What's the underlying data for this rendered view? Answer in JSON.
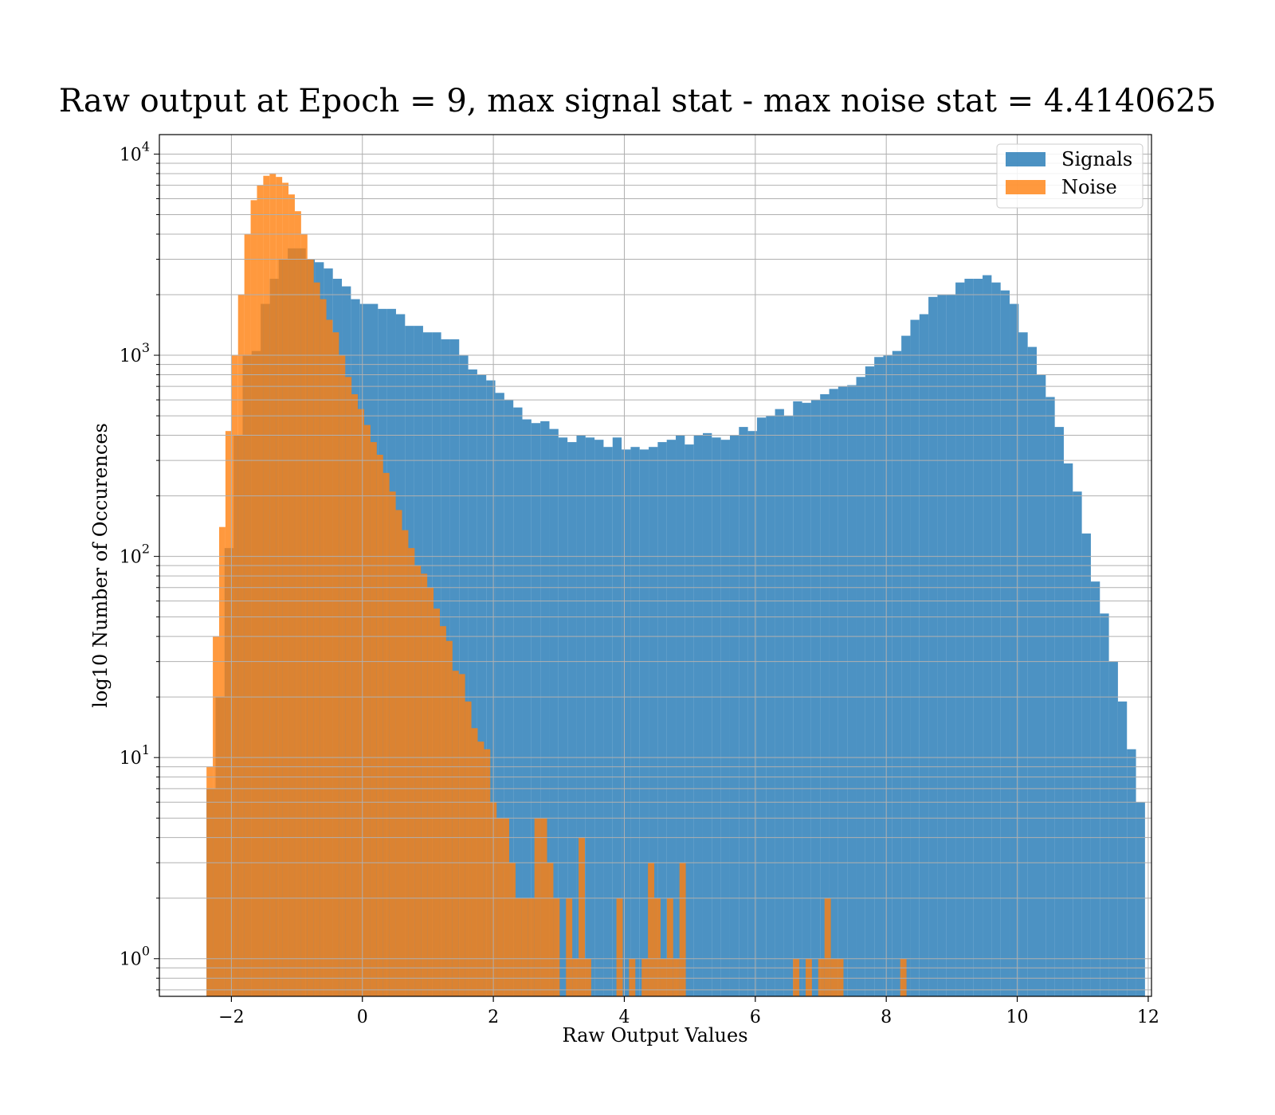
{
  "chart_data": {
    "type": "histogram",
    "title": "Raw output at Epoch = 9, max signal stat - max noise stat = 4.4140625",
    "xlabel": "Raw Output Values",
    "ylabel": "log10 Number of Occurences",
    "xlim": [
      -3.1,
      12.05
    ],
    "ylim": [
      0.65,
      12500
    ],
    "yscale": "log",
    "grid": true,
    "legend_position": "top-right",
    "x_ticks": [
      {
        "value": -2,
        "label": "−2"
      },
      {
        "value": 0,
        "label": "0"
      },
      {
        "value": 2,
        "label": "2"
      },
      {
        "value": 4,
        "label": "4"
      },
      {
        "value": 6,
        "label": "6"
      },
      {
        "value": 8,
        "label": "8"
      },
      {
        "value": 10,
        "label": "10"
      },
      {
        "value": 12,
        "label": "12"
      }
    ],
    "y_ticks": [
      {
        "value": 1,
        "base": "10",
        "exp": "0"
      },
      {
        "value": 10,
        "base": "10",
        "exp": "1"
      },
      {
        "value": 100,
        "base": "10",
        "exp": "2"
      },
      {
        "value": 1000,
        "base": "10",
        "exp": "3"
      },
      {
        "value": 10000,
        "base": "10",
        "exp": "4"
      }
    ],
    "series": [
      {
        "name": "Signals",
        "color": "#1f77b4",
        "bin_start": -2.38,
        "bin_width": 0.1378,
        "counts": [
          7,
          20,
          110,
          400,
          1000,
          1050,
          1800,
          2400,
          3000,
          3400,
          3400,
          3000,
          2900,
          2700,
          2400,
          2200,
          1900,
          1800,
          1800,
          1700,
          1700,
          1600,
          1400,
          1400,
          1300,
          1300,
          1200,
          1200,
          1000,
          850,
          800,
          750,
          650,
          600,
          550,
          480,
          460,
          470,
          430,
          390,
          370,
          400,
          390,
          380,
          350,
          390,
          340,
          350,
          340,
          350,
          370,
          380,
          400,
          360,
          400,
          410,
          390,
          380,
          400,
          440,
          420,
          490,
          500,
          540,
          500,
          590,
          580,
          600,
          640,
          680,
          700,
          710,
          780,
          880,
          980,
          1000,
          1050,
          1250,
          1500,
          1600,
          1950,
          2000,
          2000,
          2300,
          2400,
          2400,
          2500,
          2300,
          2100,
          1800,
          1300,
          1100,
          800,
          620,
          440,
          290,
          210,
          130,
          75,
          52,
          30,
          19,
          11,
          6
        ]
      },
      {
        "name": "Noise",
        "color": "#ff7f0e",
        "bin_start": -2.38,
        "bin_width": 0.0963,
        "counts": [
          9,
          40,
          140,
          420,
          1000,
          2000,
          4000,
          5900,
          7000,
          7800,
          8000,
          7700,
          7200,
          6300,
          5200,
          4000,
          3000,
          2300,
          1900,
          1500,
          1300,
          1000,
          780,
          640,
          540,
          450,
          370,
          320,
          260,
          210,
          170,
          135,
          110,
          90,
          82,
          70,
          55,
          45,
          38,
          27,
          26,
          19,
          14,
          12,
          11,
          6,
          5,
          5,
          3,
          2,
          2,
          2,
          5,
          5,
          3,
          2,
          0,
          2,
          1,
          4,
          1,
          0,
          0,
          0,
          0,
          2,
          0,
          1,
          0,
          1,
          3,
          2,
          1,
          2,
          1,
          3,
          0,
          0,
          0,
          0,
          0,
          0,
          0,
          0,
          0,
          0,
          0,
          0,
          0,
          0,
          0,
          0,
          0,
          1,
          0,
          1,
          0,
          1,
          2,
          1,
          1,
          0,
          0,
          0,
          0,
          0,
          0,
          0,
          0,
          0,
          1
        ]
      }
    ]
  }
}
